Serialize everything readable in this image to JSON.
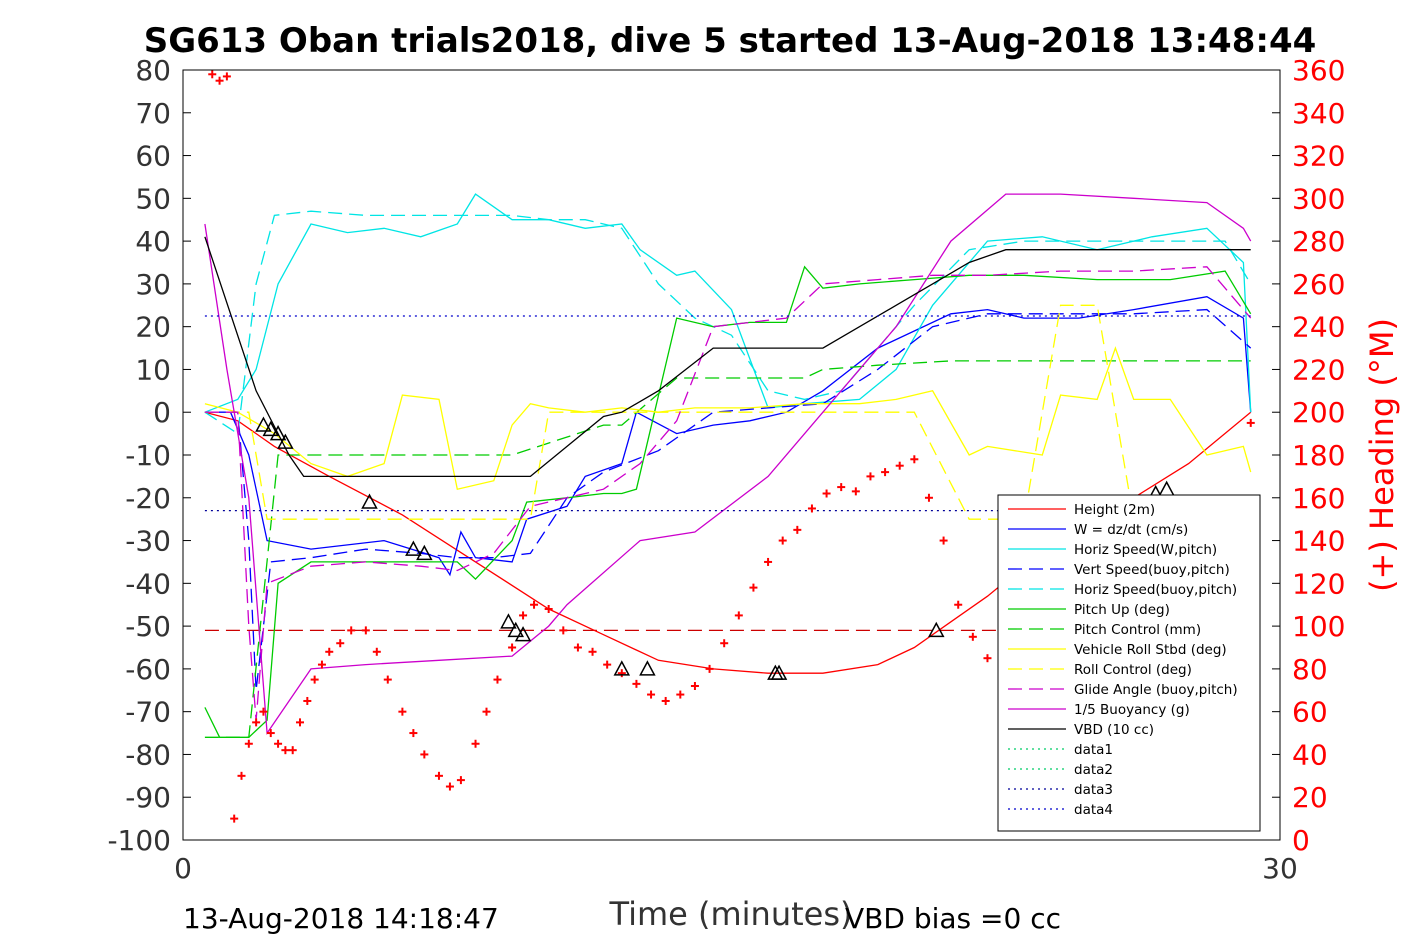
{
  "chart_data": {
    "type": "line",
    "title": "SG613 Oban trials2018, dive 5 started 13-Aug-2018 13:48:44",
    "xlabel": "Time (minutes)",
    "ylabel_right": "(+) Heading (°M)",
    "xlim": [
      0,
      30
    ],
    "ylim_left": [
      -100,
      80
    ],
    "ylim_right": [
      0,
      360
    ],
    "xticks": [
      0,
      30
    ],
    "yticks_left": [
      -100,
      -90,
      -80,
      -70,
      -60,
      -50,
      -40,
      -30,
      -20,
      -10,
      0,
      10,
      20,
      30,
      40,
      50,
      60,
      70,
      80
    ],
    "yticks_right": [
      0,
      20,
      40,
      60,
      80,
      100,
      120,
      140,
      160,
      180,
      200,
      220,
      240,
      260,
      280,
      300,
      320,
      340,
      360
    ],
    "footer_left": "13-Aug-2018 14:18:47",
    "footer_right": "VBD bias =0 cc",
    "legend_position": "lower-right",
    "grid": false,
    "colors": {
      "height": "#ff0000",
      "w": "#0000ff",
      "horiz": "#00e5e5",
      "pitch": "#00cc00",
      "roll": "#ffff00",
      "glide": "#cc00cc",
      "vbd": "#000000",
      "heading": "#ff0000",
      "data1": "#00cc66",
      "data2": "#00cc66",
      "data3": "#000099",
      "data4": "#0000cc"
    },
    "series": [
      {
        "name": "Height (2m)",
        "key": "height",
        "style": "solid",
        "x": [
          0.6,
          1.5,
          2.5,
          4.0,
          6.0,
          8.0,
          10.0,
          11.5,
          13.0,
          14.5,
          16.0,
          17.5,
          19.0,
          20.0,
          21.0,
          22.0,
          23.0,
          24.5,
          26.0,
          27.5,
          29.2
        ],
        "y": [
          0,
          -2,
          -8,
          -15,
          -24,
          -35,
          -46,
          -52,
          -58,
          -60,
          -61,
          -61,
          -59,
          -55,
          -49,
          -43,
          -36,
          -28,
          -20,
          -12,
          0
        ]
      },
      {
        "name": "W = dz/dt (cm/s)",
        "key": "w",
        "style": "solid",
        "x": [
          0.6,
          1.3,
          1.8,
          2.3,
          3.5,
          5.5,
          7.0,
          7.3,
          7.6,
          8.0,
          9.0,
          9.4,
          10.5,
          11.0,
          12.0,
          12.4,
          13.5,
          14.5,
          15.5,
          16.5,
          17.5,
          19.0,
          21.0,
          22.0,
          23.0,
          24.5,
          26.0,
          28.0,
          29.0,
          29.2
        ],
        "y": [
          0,
          0,
          -10,
          -30,
          -32,
          -30,
          -34,
          -38,
          -28,
          -34,
          -35,
          -25,
          -22,
          -15,
          -12,
          0,
          -5,
          -3,
          -2,
          0,
          5,
          15,
          23,
          24,
          22,
          22,
          24,
          27,
          22,
          0
        ]
      },
      {
        "name": "Horiz Speed(W,pitch)",
        "key": "horiz",
        "style": "solid",
        "x": [
          0.6,
          1.5,
          2.0,
          2.6,
          3.5,
          4.5,
          5.5,
          6.5,
          7.5,
          8.0,
          9.0,
          10.0,
          11.0,
          12.0,
          12.5,
          13.5,
          14.0,
          15.0,
          16.0,
          17.0,
          18.5,
          19.5,
          20.5,
          22.0,
          23.5,
          25.0,
          26.5,
          28.0,
          29.0,
          29.2
        ],
        "y": [
          0,
          3,
          10,
          30,
          44,
          42,
          43,
          41,
          44,
          51,
          45,
          45,
          43,
          44,
          38,
          32,
          33,
          24,
          1,
          2,
          3,
          10,
          25,
          40,
          41,
          38,
          41,
          43,
          35,
          0
        ]
      },
      {
        "name": "Vert Speed(buoy,pitch)",
        "key": "w",
        "style": "dash",
        "x": [
          0.6,
          1.5,
          1.8,
          2.0,
          2.4,
          3.5,
          5.0,
          6.5,
          7.5,
          8.5,
          9.5,
          10.5,
          11.5,
          13.0,
          14.5,
          16.0,
          17.5,
          19.0,
          20.5,
          22.0,
          24.0,
          26.0,
          28.0,
          29.2
        ],
        "y": [
          0,
          0,
          -30,
          -65,
          -35,
          -34,
          -32,
          -33,
          -34,
          -34,
          -33,
          -20,
          -14,
          -9,
          0,
          1,
          2,
          10,
          20,
          23,
          23,
          23,
          24,
          15
        ]
      },
      {
        "name": "Horiz Speed(buoy,pitch)",
        "key": "horiz",
        "style": "dash",
        "x": [
          0.6,
          1.5,
          2.0,
          2.5,
          3.5,
          5.0,
          6.5,
          8.0,
          9.0,
          10.0,
          11.0,
          12.0,
          13.0,
          14.0,
          15.0,
          16.0,
          17.0,
          18.0,
          19.0,
          20.0,
          21.5,
          23.0,
          25.0,
          27.0,
          28.5,
          29.2
        ],
        "y": [
          0,
          -5,
          30,
          46,
          47,
          46,
          46,
          46,
          46,
          45,
          45,
          43,
          30,
          22,
          18,
          5,
          3,
          5,
          15,
          25,
          38,
          40,
          40,
          40,
          40,
          30
        ]
      },
      {
        "name": "Pitch Up (deg)",
        "key": "pitch",
        "style": "solid",
        "x": [
          0.6,
          1.0,
          1.8,
          2.3,
          2.6,
          3.5,
          5.0,
          6.5,
          7.5,
          8.0,
          9.0,
          9.4,
          10.5,
          11.5,
          12.0,
          12.4,
          13.5,
          14.5,
          15.5,
          16.5,
          17.0,
          17.5,
          18.5,
          20.0,
          21.5,
          23.0,
          25.0,
          27.0,
          28.5,
          29.2
        ],
        "y": [
          -69,
          -76,
          -76,
          -72,
          -40,
          -35,
          -35,
          -35,
          -35,
          -39,
          -30,
          -21,
          -20,
          -19,
          -19,
          -18,
          22,
          20,
          21,
          21,
          34,
          29,
          30,
          31,
          32,
          32,
          31,
          31,
          33,
          23
        ]
      },
      {
        "name": "Pitch Control (mm)",
        "key": "pitch",
        "style": "dash",
        "x": [
          0.6,
          1.8,
          2.6,
          3.5,
          7.5,
          9.0,
          11.5,
          12.0,
          13.5,
          14.0,
          16.0,
          17.0,
          17.5,
          19.0,
          21.0,
          24.0,
          27.0,
          29.2
        ],
        "y": [
          -76,
          -76,
          -10,
          -10,
          -10,
          -10,
          -3,
          -3,
          8,
          8,
          8,
          8,
          10,
          11,
          12,
          12,
          12,
          12
        ]
      },
      {
        "name": "Vehicle Roll Stbd (deg)",
        "key": "roll",
        "style": "solid",
        "x": [
          0.6,
          1.5,
          2.5,
          3.5,
          4.5,
          5.5,
          6.0,
          7.0,
          7.5,
          8.5,
          9.0,
          9.5,
          10.0,
          11.0,
          12.0,
          13.0,
          14.0,
          15.5,
          17.0,
          18.5,
          19.5,
          20.5,
          21.5,
          22.0,
          23.5,
          24.0,
          25.0,
          25.5,
          26.0,
          27.0,
          28.0,
          29.0,
          29.2
        ],
        "y": [
          2,
          0,
          -5,
          -12,
          -15,
          -12,
          4,
          3,
          -18,
          -16,
          -3,
          2,
          1,
          0,
          1,
          0,
          1,
          1,
          2,
          2,
          3,
          5,
          -10,
          -8,
          -10,
          4,
          3,
          15,
          3,
          3,
          -10,
          -8,
          -14
        ]
      },
      {
        "name": "Roll Control (deg)",
        "key": "roll",
        "style": "dash",
        "x": [
          0.6,
          1.8,
          2.3,
          3.5,
          7.0,
          8.0,
          9.5,
          10.0,
          12.0,
          13.0,
          16.0,
          17.0,
          19.0,
          20.0,
          21.5,
          23.0,
          24.0,
          25.0,
          26.0,
          27.5,
          29.2
        ],
        "y": [
          0,
          0,
          -25,
          -25,
          -25,
          -25,
          -25,
          0,
          0,
          0,
          0,
          0,
          0,
          0,
          -25,
          -25,
          25,
          25,
          -25,
          -25,
          -25
        ]
      },
      {
        "name": "Glide Angle (buoy,pitch)",
        "key": "glide",
        "style": "dash",
        "x": [
          0.6,
          1.5,
          1.8,
          2.0,
          2.3,
          3.5,
          5.0,
          6.5,
          7.5,
          8.5,
          9.5,
          10.5,
          11.5,
          12.5,
          13.5,
          14.5,
          15.5,
          16.5,
          17.5,
          19.0,
          20.5,
          22.0,
          24.0,
          26.0,
          28.0,
          29.2
        ],
        "y": [
          0,
          0,
          -50,
          -72,
          -40,
          -36,
          -35,
          -36,
          -37,
          -33,
          -22,
          -20,
          -18,
          -12,
          -2,
          20,
          21,
          22,
          30,
          31,
          32,
          32,
          33,
          33,
          34,
          22
        ]
      },
      {
        "name": "1/5 Buoyancy (g)",
        "key": "glide",
        "style": "solid",
        "x": [
          0.6,
          1.2,
          1.8,
          2.3,
          2.7,
          3.5,
          5.0,
          7.0,
          9.0,
          10.0,
          10.5,
          12.5,
          14.0,
          16.0,
          17.5,
          18.5,
          19.5,
          21.0,
          22.5,
          24.0,
          26.0,
          28.0,
          29.0,
          29.2
        ],
        "y": [
          44,
          10,
          -20,
          -75,
          -70,
          -60,
          -59,
          -58,
          -57,
          -50,
          -45,
          -30,
          -28,
          -15,
          0,
          10,
          20,
          40,
          51,
          51,
          50,
          49,
          43,
          40
        ]
      },
      {
        "name": "VBD (10 cc)",
        "key": "vbd",
        "style": "solid",
        "x": [
          0.6,
          2.0,
          2.9,
          3.3,
          9.5,
          11.5,
          12.0,
          13.0,
          14.5,
          16.0,
          17.5,
          18.5,
          19.5,
          20.5,
          21.5,
          22.5,
          24.0,
          26.0,
          28.0,
          29.2
        ],
        "y": [
          41,
          5,
          -10,
          -15,
          -15,
          -1,
          0,
          5,
          15,
          15,
          15,
          20,
          25,
          30,
          35,
          38,
          38,
          38,
          38,
          38
        ]
      },
      {
        "name": "data1",
        "key": "data1",
        "style": "dot",
        "x": [],
        "y": []
      },
      {
        "name": "data2",
        "key": "data2",
        "style": "dot",
        "x": [],
        "y": []
      },
      {
        "name": "data3",
        "key": "data3",
        "style": "dot",
        "x": [
          0.6,
          29.2
        ],
        "y": [
          -23,
          -23
        ]
      },
      {
        "name": "data4",
        "key": "data4",
        "style": "dot",
        "x": [
          0.6,
          29.2
        ],
        "y": [
          22.5,
          22.5
        ]
      }
    ],
    "reference_lines": [
      {
        "y": -51,
        "color": "#cc0000",
        "style": "dash",
        "x": [
          0.6,
          29.2
        ]
      }
    ],
    "triangle_markers": {
      "description": "black triangles on Height curve",
      "x": [
        2.2,
        2.4,
        2.6,
        2.8,
        5.1,
        6.3,
        6.6,
        8.9,
        9.1,
        9.3,
        12.0,
        12.7,
        16.2,
        16.3,
        20.6,
        22.5,
        23.3,
        24.5,
        25.0,
        26.6,
        26.9
      ],
      "y": [
        -3,
        -4,
        -5,
        -7,
        -21,
        -32,
        -33,
        -49,
        -51,
        -52,
        -60,
        -60,
        -61,
        -61,
        -51,
        -41,
        -33,
        -27,
        -26,
        -19,
        -18
      ]
    },
    "heading_markers": {
      "name": "Heading (°M)",
      "axis": "right",
      "marker": "+",
      "x": [
        0.8,
        1.0,
        1.2,
        1.4,
        1.6,
        1.8,
        2.0,
        2.2,
        2.4,
        2.6,
        2.8,
        3.0,
        3.2,
        3.4,
        3.6,
        3.8,
        4.0,
        4.3,
        4.6,
        5.0,
        5.3,
        5.6,
        6.0,
        6.3,
        6.6,
        7.0,
        7.3,
        7.6,
        8.0,
        8.3,
        8.6,
        9.0,
        9.3,
        9.6,
        10.0,
        10.4,
        10.8,
        11.2,
        11.6,
        12.0,
        12.4,
        12.8,
        13.2,
        13.6,
        14.0,
        14.4,
        14.8,
        15.2,
        15.6,
        16.0,
        16.4,
        16.8,
        17.2,
        17.6,
        18.0,
        18.4,
        18.8,
        19.2,
        19.6,
        20.0,
        20.4,
        20.8,
        21.2,
        21.6,
        22.0,
        22.4,
        22.8,
        23.2,
        23.6,
        24.0,
        24.4,
        24.8,
        25.2,
        25.6,
        26.0,
        26.4,
        26.8,
        27.2,
        27.6,
        28.0,
        28.4,
        28.8,
        29.0,
        29.2
      ],
      "y": [
        358,
        355,
        357,
        10,
        30,
        45,
        55,
        60,
        50,
        45,
        42,
        42,
        55,
        65,
        75,
        82,
        88,
        92,
        98,
        98,
        88,
        75,
        60,
        50,
        40,
        30,
        25,
        28,
        45,
        60,
        75,
        90,
        105,
        110,
        108,
        98,
        90,
        88,
        82,
        78,
        73,
        68,
        65,
        68,
        72,
        80,
        92,
        105,
        118,
        130,
        140,
        145,
        155,
        162,
        165,
        163,
        170,
        172,
        175,
        178,
        160,
        140,
        110,
        95,
        85,
        78,
        70,
        65,
        58,
        70,
        95,
        108,
        110,
        112,
        118,
        125,
        130,
        145,
        140,
        125,
        118,
        110,
        100,
        195
      ]
    }
  }
}
